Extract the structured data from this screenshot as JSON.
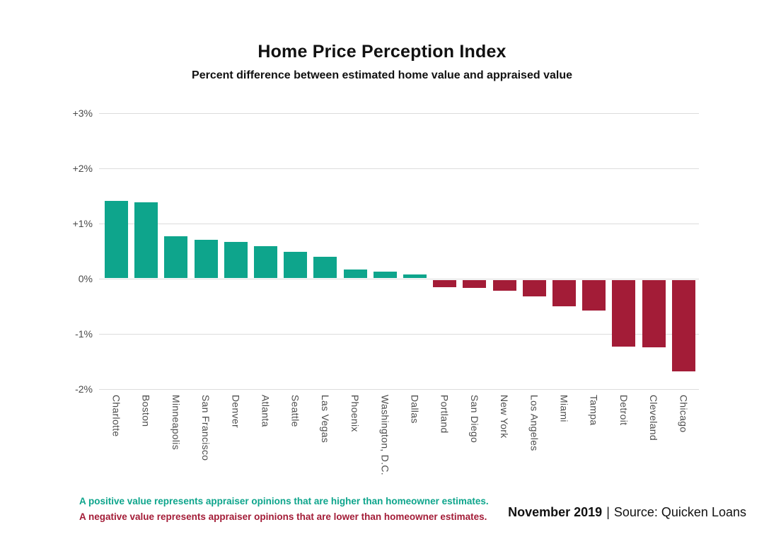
{
  "title": "Home Price Perception Index",
  "subtitle": "Percent difference between estimated home value and appraised value",
  "chart_data": {
    "type": "bar",
    "title": "Home Price Perception Index",
    "subtitle": "Percent difference between estimated home value and appraised value",
    "categories": [
      "Charlotte",
      "Boston",
      "Minneapolis",
      "San Francisco",
      "Denver",
      "Atlanta",
      "Seattle",
      "Las Vegas",
      "Phoenix",
      "Washington, D.C.",
      "Dallas",
      "Portland",
      "San Diego",
      "New York",
      "Los Angeles",
      "Miami",
      "Tampa",
      "Detroit",
      "Cleveland",
      "Chicago"
    ],
    "values": [
      1.4,
      1.37,
      0.76,
      0.69,
      0.65,
      0.58,
      0.48,
      0.39,
      0.15,
      0.12,
      0.07,
      -0.13,
      -0.14,
      -0.19,
      -0.29,
      -0.48,
      -0.55,
      -1.2,
      -1.22,
      -1.65
    ],
    "unit": "%",
    "ylim": [
      -2,
      3
    ],
    "grid": true,
    "yticks": [
      {
        "label": "+3%",
        "value": 3
      },
      {
        "label": "+2%",
        "value": 2
      },
      {
        "label": "+1%",
        "value": 1
      },
      {
        "label": "0%",
        "value": 0
      },
      {
        "label": "-1%",
        "value": -1
      },
      {
        "label": "-2%",
        "value": -2
      }
    ],
    "positive_color": "#0ea58c",
    "negative_color": "#a31c37"
  },
  "footnotes": {
    "positive": "A positive value represents appraiser opinions that are higher than homeowner estimates.",
    "negative": "A negative value represents appraiser opinions that are lower than homeowner estimates."
  },
  "source": {
    "date": "November 2019",
    "separator": "|",
    "attribution": "Source: Quicken Loans"
  }
}
